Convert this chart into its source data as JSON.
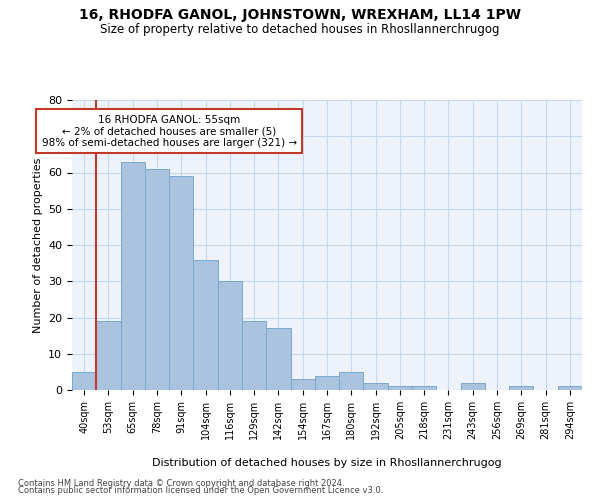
{
  "title": "16, RHODFA GANOL, JOHNSTOWN, WREXHAM, LL14 1PW",
  "subtitle": "Size of property relative to detached houses in Rhosllannerchrugog",
  "xlabel": "Distribution of detached houses by size in Rhosllannerchrugog",
  "ylabel": "Number of detached properties",
  "bar_values": [
    5,
    19,
    63,
    61,
    59,
    36,
    30,
    19,
    17,
    3,
    4,
    5,
    2,
    1,
    1,
    0,
    2,
    0,
    1,
    0,
    1
  ],
  "bar_labels": [
    "40sqm",
    "53sqm",
    "65sqm",
    "78sqm",
    "91sqm",
    "104sqm",
    "116sqm",
    "129sqm",
    "142sqm",
    "154sqm",
    "167sqm",
    "180sqm",
    "192sqm",
    "205sqm",
    "218sqm",
    "231sqm",
    "243sqm",
    "256sqm",
    "269sqm",
    "281sqm",
    "294sqm"
  ],
  "bar_color": "#aac4e0",
  "bar_edge_color": "#7aa8cc",
  "grid_color": "#c8d8ec",
  "background_color": "#eef3fb",
  "vline_x_idx": 1,
  "vline_color": "#c0392b",
  "annotation_text": "16 RHODFA GANOL: 55sqm\n← 2% of detached houses are smaller (5)\n98% of semi-detached houses are larger (321) →",
  "annotation_box_color": "#ffffff",
  "annotation_box_edge": "#c0392b",
  "ylim": [
    0,
    80
  ],
  "yticks": [
    0,
    10,
    20,
    30,
    40,
    50,
    60,
    70,
    80
  ],
  "footer1": "Contains HM Land Registry data © Crown copyright and database right 2024.",
  "footer2": "Contains public sector information licensed under the Open Government Licence v3.0."
}
